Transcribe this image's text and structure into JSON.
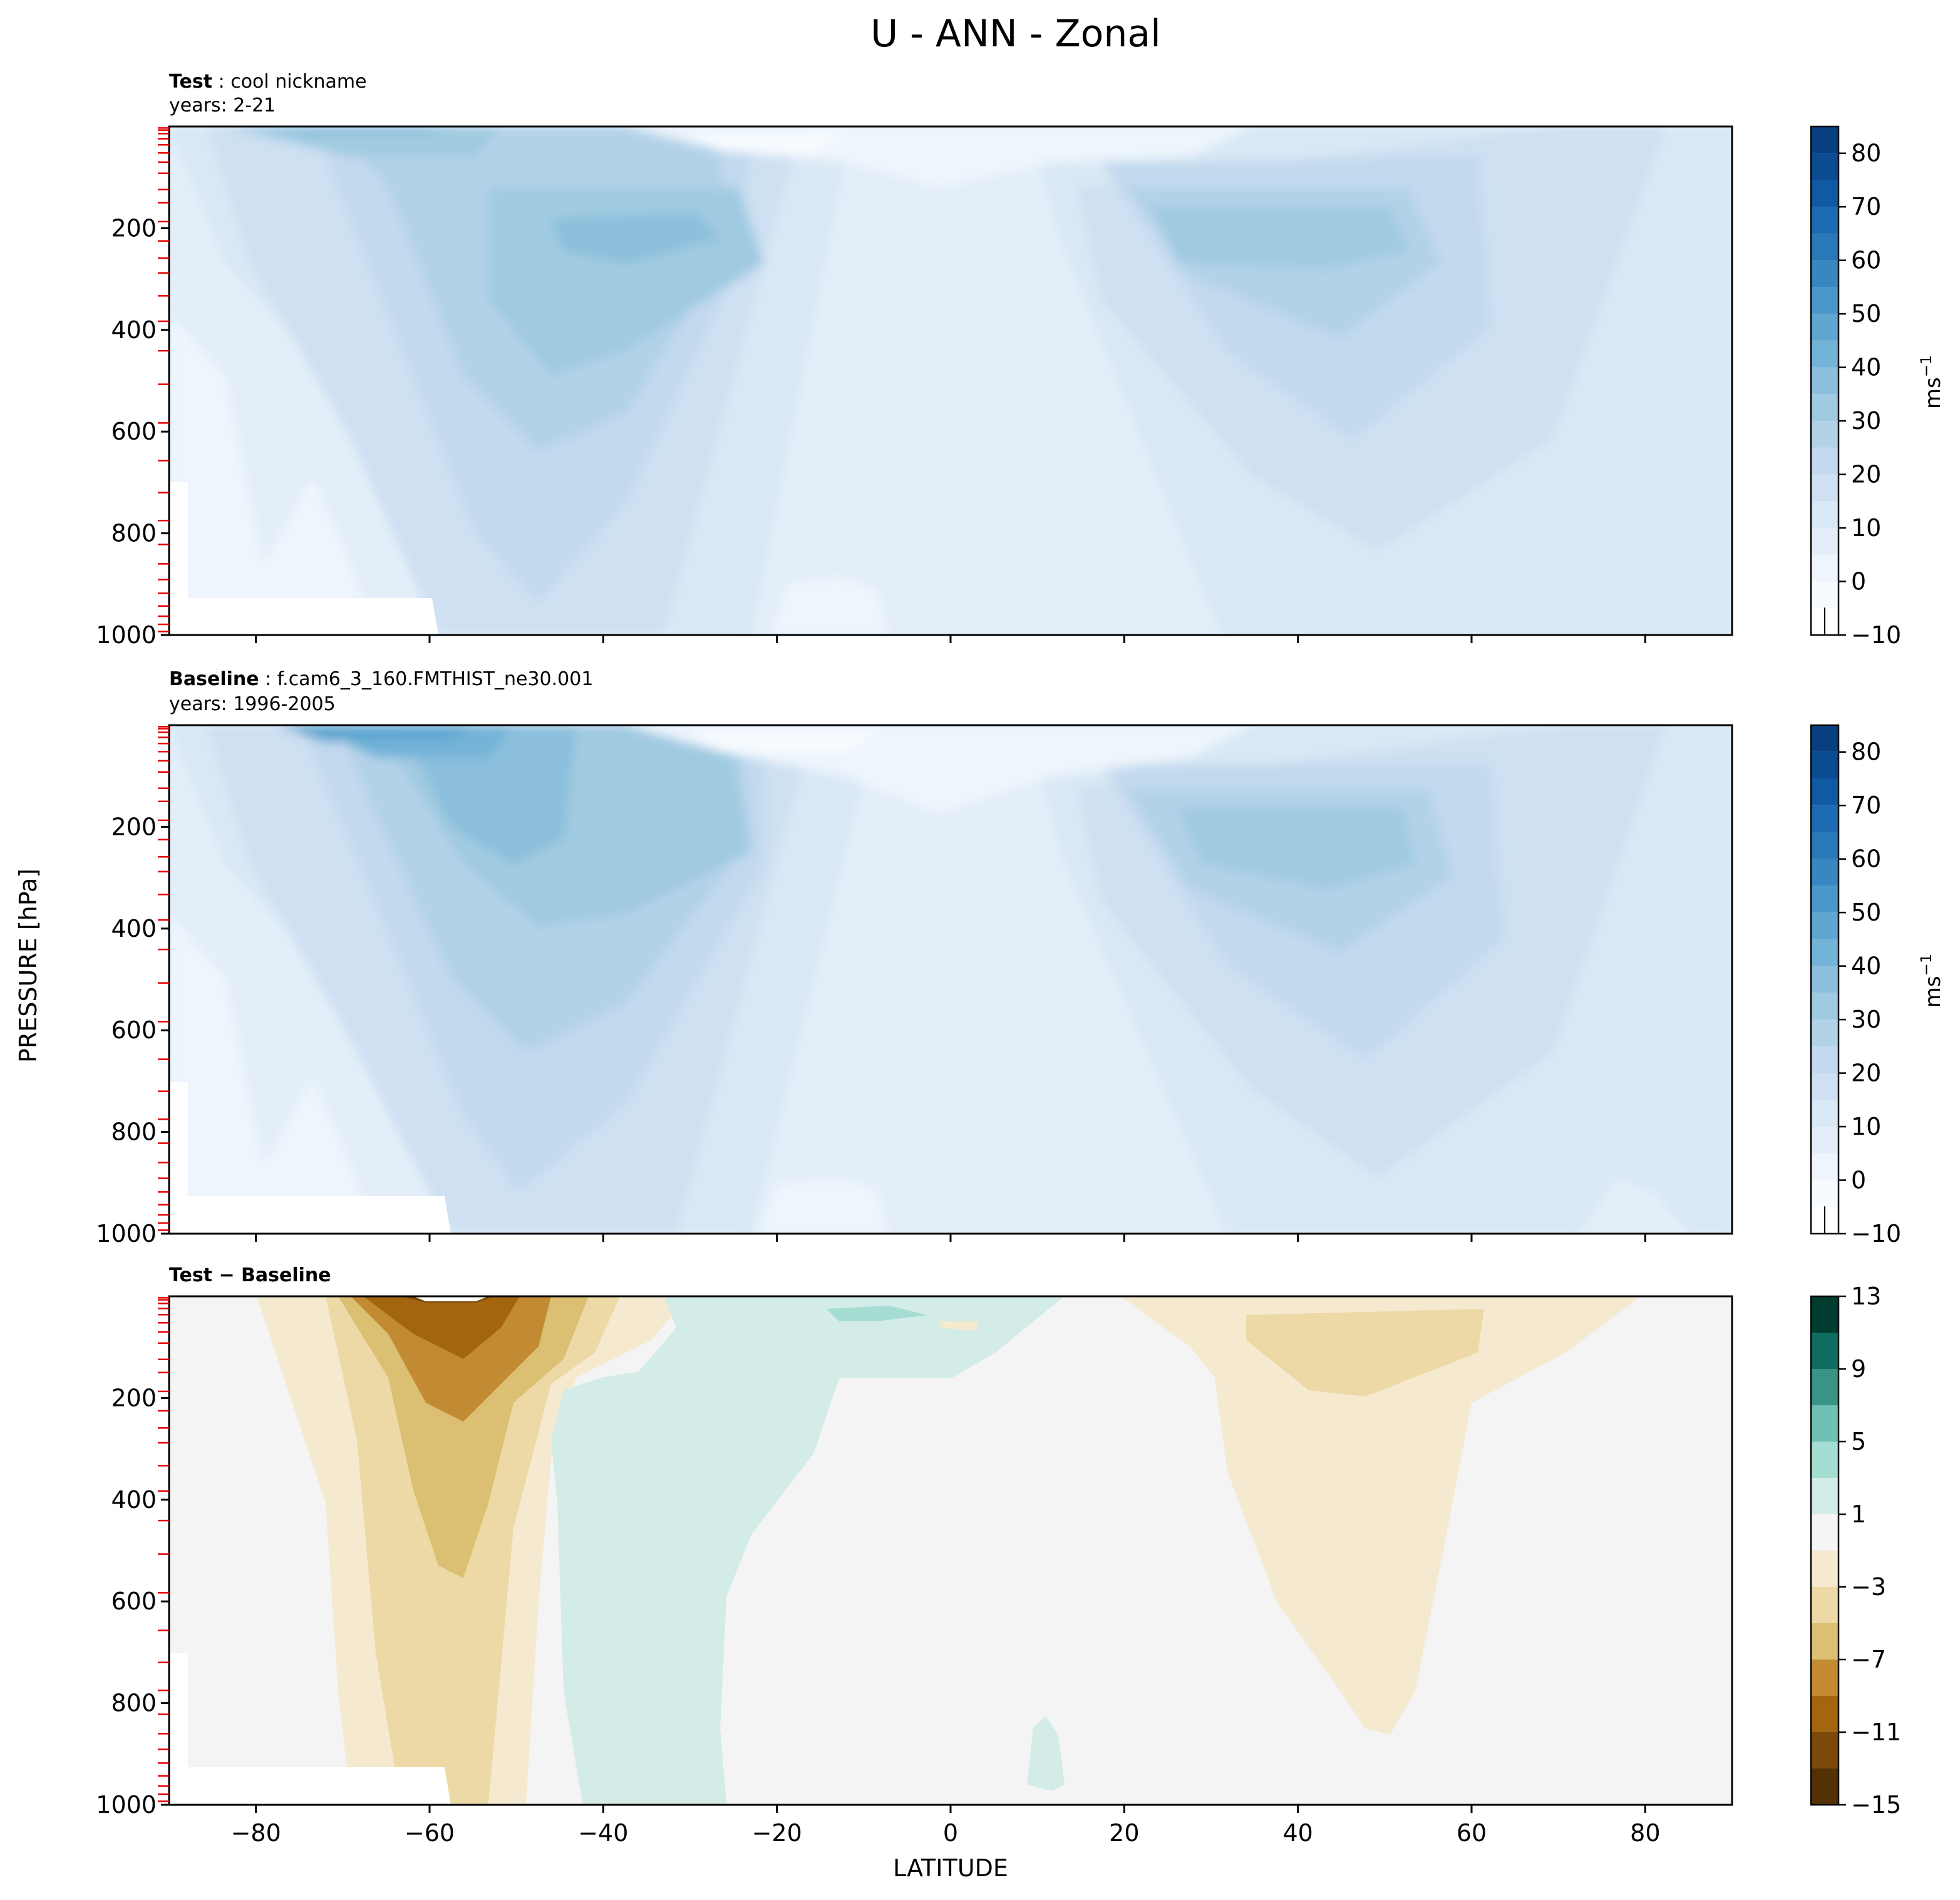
{
  "figure_title": "U - ANN - Zonal",
  "shared_axes": {
    "ylabel": "PRESSURE [hPa]",
    "xlabel": "LATITUDE"
  },
  "units_label": "ms",
  "units_exponent": "−1",
  "panels": [
    {
      "label_bold": "Test",
      "label_rest": " : cool nickname",
      "years": "years: 2-21"
    },
    {
      "label_bold": "Baseline",
      "label_rest": " : f.cam6_3_160.FMTHIST_ne30.001",
      "years": "years: 1996-2005"
    },
    {
      "label_bold": "Test − Baseline",
      "label_rest": "",
      "years": ""
    }
  ],
  "chart_data": [
    {
      "type": "contourf",
      "title": "Test : cool nickname",
      "subtitle": "years: 2-21",
      "xlabel": "",
      "ylabel": "PRESSURE [hPa]",
      "xlim": [
        -90,
        90
      ],
      "ylim": [
        1000,
        0
      ],
      "xticks": [
        -80,
        -60,
        -40,
        -20,
        0,
        20,
        40,
        60,
        80
      ],
      "yticks": [
        200,
        400,
        600,
        800,
        1000
      ],
      "levels": [
        -10,
        -5,
        0,
        5,
        10,
        15,
        20,
        25,
        30,
        35,
        40,
        45,
        50,
        55,
        60,
        65,
        70,
        75,
        80,
        85
      ],
      "colorbar_ticks": [
        -10,
        0,
        10,
        20,
        30,
        40,
        50,
        60,
        70,
        80
      ],
      "jets": [
        {
          "lat": -48,
          "p": 200,
          "u": 40
        },
        {
          "lat": 41,
          "p": 220,
          "u": 30
        }
      ]
    },
    {
      "type": "contourf",
      "title": "Baseline : f.cam6_3_160.FMTHIST_ne30.001",
      "subtitle": "years: 1996-2005",
      "xlabel": "",
      "ylabel": "PRESSURE [hPa]",
      "xlim": [
        -90,
        90
      ],
      "ylim": [
        1000,
        0
      ],
      "xticks": [
        -80,
        -60,
        -40,
        -20,
        0,
        20,
        40,
        60,
        80
      ],
      "yticks": [
        200,
        400,
        600,
        800,
        1000
      ],
      "levels": [
        -10,
        -5,
        0,
        5,
        10,
        15,
        20,
        25,
        30,
        35,
        40,
        45,
        50,
        55,
        60,
        65,
        70,
        75,
        80,
        85
      ],
      "colorbar_ticks": [
        -10,
        0,
        10,
        20,
        30,
        40,
        50,
        60,
        70,
        80
      ],
      "jets": [
        {
          "lat": -55,
          "p": 50,
          "u": 55
        },
        {
          "lat": 40,
          "p": 200,
          "u": 35
        }
      ]
    },
    {
      "type": "contourf",
      "title": "Test − Baseline",
      "xlabel": "LATITUDE",
      "ylabel": "PRESSURE [hPa]",
      "xlim": [
        -90,
        90
      ],
      "ylim": [
        1000,
        0
      ],
      "xticks": [
        -80,
        -60,
        -40,
        -20,
        0,
        20,
        40,
        60,
        80
      ],
      "yticks": [
        200,
        400,
        600,
        800,
        1000
      ],
      "levels": [
        -15,
        -13,
        -11,
        -9,
        -7,
        -5,
        -3,
        -1,
        1,
        3,
        5,
        7,
        9,
        11,
        13
      ],
      "colorbar_ticks": [
        -15,
        -11,
        -7,
        -3,
        1,
        5,
        9,
        13
      ],
      "features": [
        {
          "lat": -58,
          "p": 10,
          "diff": -13
        },
        {
          "lat": -58,
          "p": 250,
          "diff": -6
        },
        {
          "lat": -33,
          "p": 350,
          "diff": 2
        },
        {
          "lat": 45,
          "p": 150,
          "diff": -4
        }
      ]
    }
  ],
  "colors": {
    "blues": [
      "#f7fbff",
      "#eef5fc",
      "#e3eef9",
      "#d9e8f5",
      "#cee0f2",
      "#c2d9ee",
      "#b2d2e8",
      "#a0cae1",
      "#8bbfdc",
      "#74b3d8",
      "#5fa6d1",
      "#4a98c9",
      "#3887c0",
      "#2979b9",
      "#1c6aaf",
      "#0f5aa3",
      "#0a4b91",
      "#08407f",
      "#08306b"
    ],
    "brbg": [
      "#543005",
      "#7b4a0b",
      "#a3650f",
      "#c28a33",
      "#dbbf72",
      "#ecd9a5",
      "#f5ead0",
      "#f5f5f5",
      "#d3ece8",
      "#a6ddd3",
      "#6fc1b3",
      "#399486",
      "#0f6e61",
      "#003c30"
    ]
  }
}
